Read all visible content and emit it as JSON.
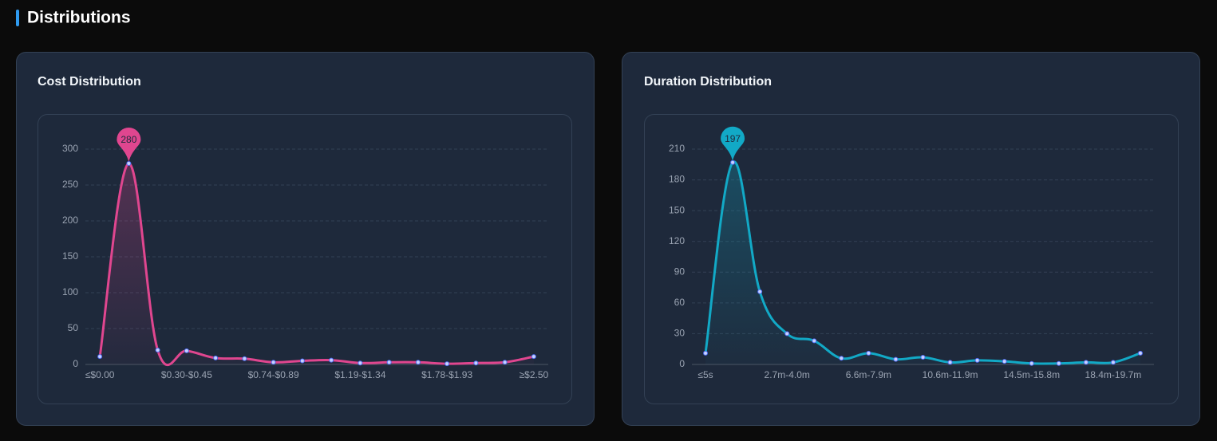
{
  "header": {
    "title": "Distributions"
  },
  "chart_data": [
    {
      "type": "line",
      "title": "Cost Distribution",
      "categories": [
        "≤$0.00",
        null,
        null,
        "$0.30-$0.45",
        null,
        null,
        "$0.74-$0.89",
        null,
        null,
        "$1.19-$1.34",
        null,
        null,
        "$1.78-$1.93",
        null,
        null,
        "≥$2.50"
      ],
      "values": [
        11,
        280,
        20,
        19,
        9,
        8,
        3,
        5,
        6,
        2,
        3,
        3,
        1,
        2,
        3,
        11
      ],
      "color": "#e0468f",
      "smooth": true,
      "area": true,
      "mark_max": true,
      "ylim": [
        0,
        300
      ],
      "yticks": [
        0,
        50,
        100,
        150,
        200,
        250,
        300
      ],
      "grid": true
    },
    {
      "type": "line",
      "title": "Duration Distribution",
      "categories": [
        "≤5s",
        null,
        null,
        "2.7m-4.0m",
        null,
        null,
        "6.6m-7.9m",
        null,
        null,
        "10.6m-11.9m",
        null,
        null,
        "14.5m-15.8m",
        null,
        null,
        "18.4m-19.7m",
        null
      ],
      "values": [
        11,
        197,
        71,
        30,
        23,
        6,
        11,
        5,
        7,
        2,
        4,
        3,
        1,
        1,
        2,
        2,
        11
      ],
      "color": "#12a9c6",
      "smooth": true,
      "area": true,
      "mark_max": true,
      "ylim": [
        0,
        210
      ],
      "yticks": [
        0,
        30,
        60,
        90,
        120,
        150,
        180,
        210
      ],
      "grid": true
    }
  ]
}
